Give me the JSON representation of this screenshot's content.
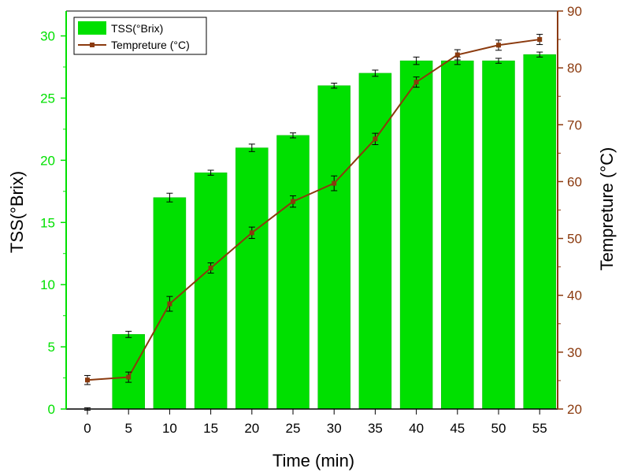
{
  "colors": {
    "bar_fill": "#00E000",
    "bar_stroke": "#00B800",
    "line": "#8B3A0E",
    "left_axis": "#00E000",
    "right_axis": "#8B3A0E",
    "error_bar": "#000000"
  },
  "chart_data": {
    "type": "bar+line",
    "xlabel": "Time (min)",
    "ylabel_left": "TSS(°Brix)",
    "ylabel_right": "Tempreture (°C)",
    "x": [
      0,
      5,
      10,
      15,
      20,
      25,
      30,
      35,
      40,
      45,
      50,
      55
    ],
    "xticks": [
      "0",
      "5",
      "10",
      "15",
      "20",
      "25",
      "30",
      "35",
      "40",
      "45",
      "50",
      "55"
    ],
    "ylim_left": [
      0,
      32
    ],
    "yticks_left": [
      "0",
      "5",
      "10",
      "15",
      "20",
      "25",
      "30"
    ],
    "ylim_right": [
      20,
      90
    ],
    "yticks_right": [
      "20",
      "30",
      "40",
      "50",
      "60",
      "70",
      "80",
      "90"
    ],
    "legend_position": "top-left",
    "grid": false,
    "series": [
      {
        "name": "TSS(°Brix)",
        "kind": "bar",
        "axis": "left",
        "values": [
          0,
          6,
          17,
          19,
          21,
          22,
          26,
          27,
          28,
          28,
          28,
          28.5
        ],
        "errors": [
          0.1,
          0.25,
          0.35,
          0.2,
          0.3,
          0.2,
          0.2,
          0.25,
          0.3,
          0.3,
          0.2,
          0.2
        ]
      },
      {
        "name": "Tempreture (°C)",
        "kind": "line",
        "axis": "right",
        "values": [
          25.1,
          25.6,
          38.5,
          44.8,
          51,
          56.5,
          59.7,
          67.5,
          77.5,
          82.3,
          84,
          85
        ],
        "errors": [
          0.8,
          0.9,
          1.3,
          0.9,
          1.0,
          1.0,
          1.3,
          1.0,
          0.9,
          0.9,
          0.9,
          0.9
        ]
      }
    ]
  }
}
